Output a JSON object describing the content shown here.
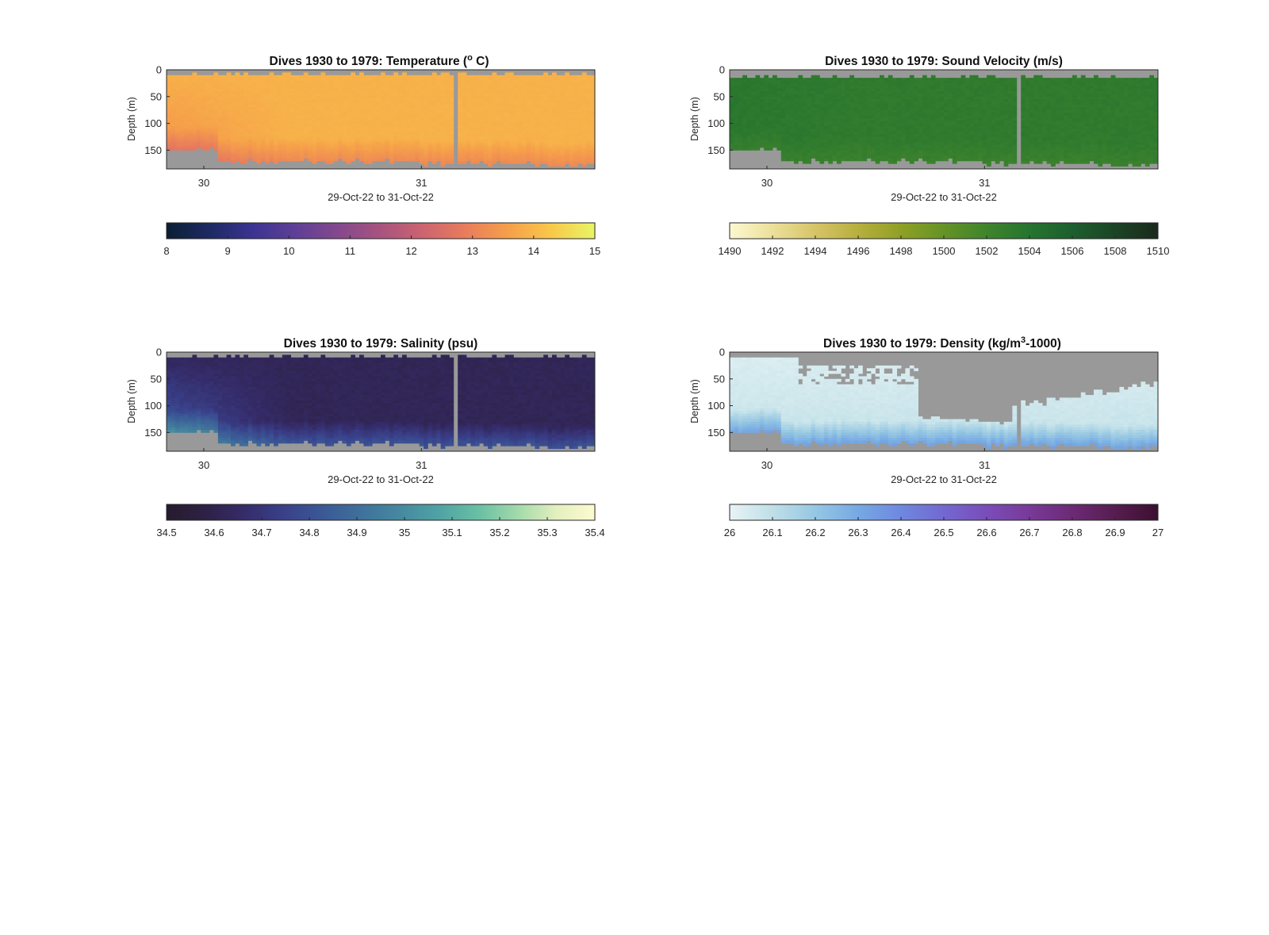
{
  "figure": {
    "background": "#ffffff",
    "nodata_color": "#999999"
  },
  "chart_data": [
    {
      "type": "heatmap",
      "variable": "temperature",
      "title": "Dives 1930 to 1979: Temperature (",
      "title_sup": "o",
      "title_suffix": " C)",
      "ylabel": "Depth (m)",
      "xlabel": "29-Oct-22 to 31-Oct-22",
      "xticks": [
        "30",
        "31"
      ],
      "yticks": [
        "0",
        "50",
        "100",
        "150"
      ],
      "ylim": [
        0,
        185
      ],
      "y_reversed": true,
      "clim": [
        8,
        15
      ],
      "colorbar_ticks": [
        "8",
        "9",
        "10",
        "11",
        "12",
        "13",
        "14",
        "15"
      ],
      "colormap": [
        "#0b1e33",
        "#1d2a63",
        "#3b3391",
        "#5e3f96",
        "#83488d",
        "#a8537f",
        "#cd6470",
        "#e97d5c",
        "#f6a04a",
        "#f9c94a",
        "#e8f565"
      ],
      "typical_value": "13.9 (upper/mid water), 12.8–13.4 near bottom, ~13.3 in first 20 hours"
    },
    {
      "type": "heatmap",
      "variable": "sound_velocity",
      "title": "Dives 1930 to 1979: Sound Velocity (m/s)",
      "ylabel": "Depth (m)",
      "xlabel": "29-Oct-22 to 31-Oct-22",
      "xticks": [
        "30",
        "31"
      ],
      "yticks": [
        "0",
        "50",
        "100",
        "150"
      ],
      "ylim": [
        0,
        185
      ],
      "y_reversed": true,
      "clim": [
        1490,
        1510
      ],
      "colorbar_ticks": [
        "1490",
        "1492",
        "1494",
        "1496",
        "1498",
        "1500",
        "1502",
        "1504",
        "1506",
        "1508",
        "1510"
      ],
      "colormap": [
        "#fdf8d0",
        "#ece09a",
        "#d6c468",
        "#b7af3e",
        "#8fa025",
        "#659326",
        "#3f842d",
        "#25742f",
        "#1c5f2e",
        "#1b4426",
        "#192a1c"
      ],
      "typical_value": "~1503 m/s throughout"
    },
    {
      "type": "heatmap",
      "variable": "salinity",
      "title": "Dives 1930 to 1979: Salinity (psu)",
      "ylabel": "Depth (m)",
      "xlabel": "29-Oct-22 to 31-Oct-22",
      "xticks": [
        "30",
        "31"
      ],
      "yticks": [
        "0",
        "50",
        "100",
        "150"
      ],
      "ylim": [
        0,
        185
      ],
      "y_reversed": true,
      "clim": [
        34.5,
        35.4
      ],
      "colorbar_ticks": [
        "34.5",
        "34.6",
        "34.7",
        "34.8",
        "34.9",
        "35",
        "35.1",
        "35.2",
        "35.3",
        "35.4"
      ],
      "colormap": [
        "#261b2d",
        "#2e2145",
        "#352c6a",
        "#394089",
        "#3b5896",
        "#3f719b",
        "#4689a0",
        "#4fa3a4",
        "#68bfa4",
        "#a1d9aa",
        "#e3efbf",
        "#fdfbd0"
      ],
      "typical_value": "34.62 psu mid water, 34.78–34.82 psu near bottom"
    },
    {
      "type": "heatmap",
      "variable": "density",
      "title": "Dives 1930 to 1979: Density (kg/m",
      "title_sup": "3",
      "title_suffix": "-1000)",
      "ylabel": "Depth (m)",
      "xlabel": "29-Oct-22 to 31-Oct-22",
      "xticks": [
        "30",
        "31"
      ],
      "yticks": [
        "0",
        "50",
        "100",
        "150"
      ],
      "ylim": [
        0,
        185
      ],
      "y_reversed": true,
      "clim": [
        26,
        27
      ],
      "colorbar_ticks": [
        "26",
        "26.1",
        "26.2",
        "26.3",
        "26.4",
        "26.5",
        "26.6",
        "26.7",
        "26.8",
        "26.9",
        "27"
      ],
      "colormap": [
        "#e8f4f4",
        "#bfdfe8",
        "#96c7e3",
        "#76a9e3",
        "#6e88df",
        "#7368d1",
        "#7a4db8",
        "#783a98",
        "#6c2a75",
        "#561d50",
        "#3b1030"
      ],
      "typical_value": "26.02–26.10 upper water, ~26.25 near bottom; shallow layer mostly missing"
    }
  ]
}
